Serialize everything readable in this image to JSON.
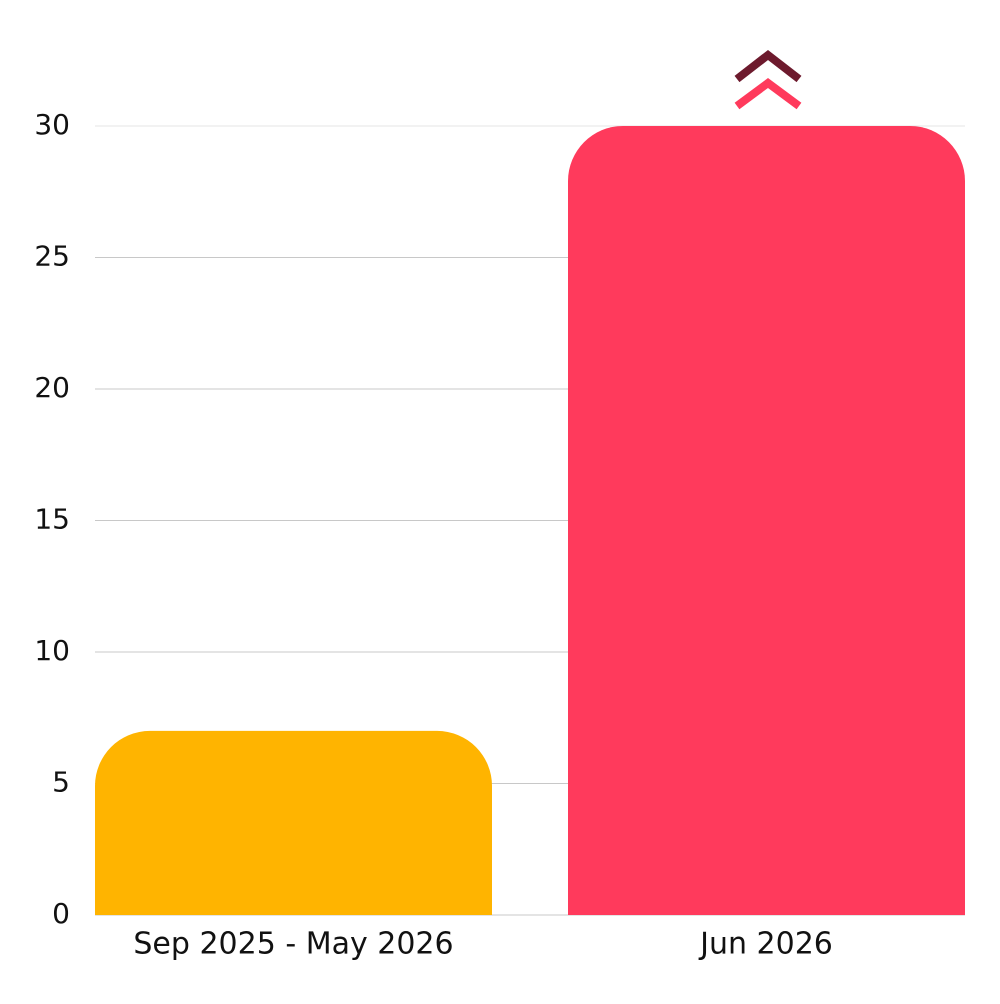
{
  "chart_data": {
    "type": "bar",
    "categories": [
      "Sep 2025 - May 2026",
      "Jun 2026"
    ],
    "values": [
      7,
      30
    ],
    "colors": [
      "#ffb400",
      "#ff3a5c"
    ],
    "ylim": [
      0,
      30
    ],
    "yticks": [
      0,
      5,
      10,
      15,
      20,
      25,
      30
    ],
    "grid": true
  }
}
